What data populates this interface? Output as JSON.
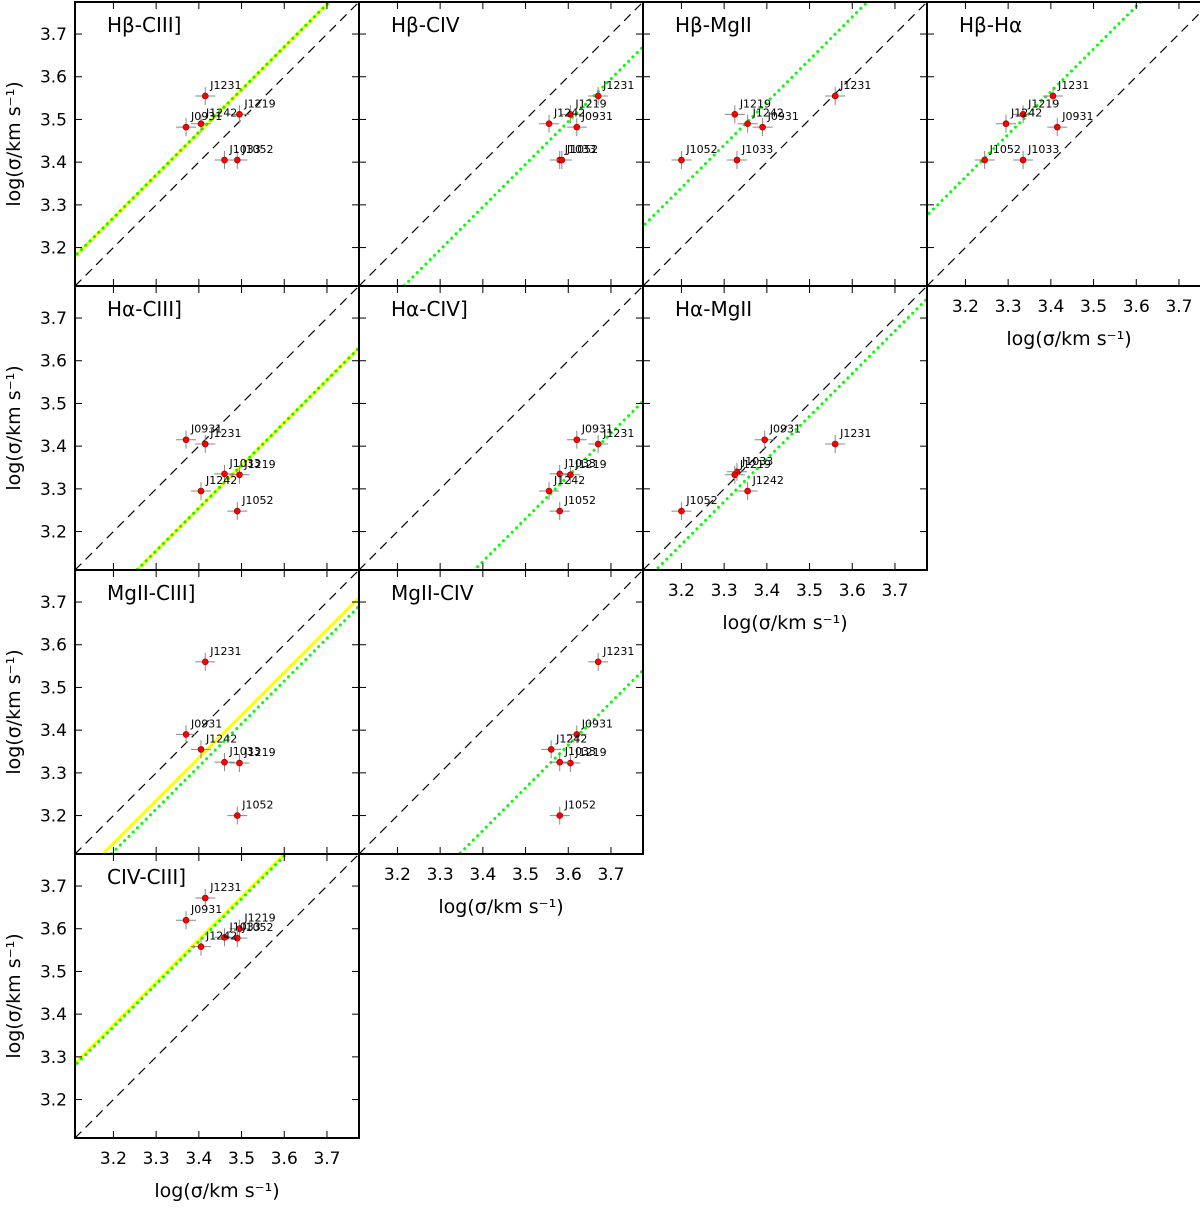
{
  "axis": {
    "xlabel": "log(σ/km s⁻¹)",
    "ylabel": "log(σ/km s⁻¹)",
    "range": [
      3.11,
      3.775
    ],
    "ticks": [
      3.2,
      3.3,
      3.4,
      3.5,
      3.6,
      3.7
    ],
    "tick_labels": [
      "3.2",
      "3.3",
      "3.4",
      "3.5",
      "3.6",
      "3.7"
    ]
  },
  "style": {
    "point_color": "#ff0000",
    "point_edge": "#8b0000",
    "fit_yellow": "#ffff00",
    "fit_green": "#00ff00",
    "error_color": "#888888"
  },
  "chart_data": [
    {
      "type": "scatter",
      "title": "Hβ-CIII]",
      "row": 0,
      "col": 0,
      "xlabel": "",
      "ylabel": "log(σ/km s⁻¹)",
      "fit_green": {
        "slope": 1,
        "intercept": 0.07
      },
      "fit_yellow": {
        "slope": 1,
        "intercept": 0.07
      },
      "points": [
        {
          "name": "J1231",
          "x": 3.415,
          "y": 3.555
        },
        {
          "name": "J1219",
          "x": 3.495,
          "y": 3.512
        },
        {
          "name": "J1242",
          "x": 3.405,
          "y": 3.49
        },
        {
          "name": "J0931",
          "x": 3.37,
          "y": 3.482
        },
        {
          "name": "J1052",
          "x": 3.49,
          "y": 3.405
        },
        {
          "name": "J1033",
          "x": 3.46,
          "y": 3.405
        }
      ]
    },
    {
      "type": "scatter",
      "title": "Hβ-CIV",
      "row": 0,
      "col": 1,
      "xlabel": "",
      "ylabel": "",
      "fit_green": {
        "slope": 1,
        "intercept": -0.105
      },
      "fit_yellow": null,
      "points": [
        {
          "name": "J1231",
          "x": 3.67,
          "y": 3.555
        },
        {
          "name": "J1219",
          "x": 3.605,
          "y": 3.512
        },
        {
          "name": "J1242",
          "x": 3.555,
          "y": 3.49
        },
        {
          "name": "J0931",
          "x": 3.62,
          "y": 3.482
        },
        {
          "name": "J1033",
          "x": 3.58,
          "y": 3.405
        },
        {
          "name": "J1052",
          "x": 3.585,
          "y": 3.405
        }
      ]
    },
    {
      "type": "scatter",
      "title": "Hβ-MgII",
      "row": 0,
      "col": 2,
      "xlabel": "",
      "ylabel": "",
      "fit_green": {
        "slope": 1,
        "intercept": 0.14
      },
      "fit_yellow": null,
      "points": [
        {
          "name": "J1231",
          "x": 3.56,
          "y": 3.555
        },
        {
          "name": "J1219",
          "x": 3.325,
          "y": 3.512
        },
        {
          "name": "J0931",
          "x": 3.39,
          "y": 3.482
        },
        {
          "name": "J1242",
          "x": 3.355,
          "y": 3.49
        },
        {
          "name": "J1052",
          "x": 3.2,
          "y": 3.405
        },
        {
          "name": "J1033",
          "x": 3.33,
          "y": 3.405
        }
      ]
    },
    {
      "type": "scatter",
      "title": "Hβ-Hα",
      "row": 0,
      "col": 3,
      "xlabel": "log(σ/km s⁻¹)",
      "ylabel": "",
      "fit_green": {
        "slope": 1,
        "intercept": 0.165
      },
      "fit_yellow": null,
      "points": [
        {
          "name": "J1231",
          "x": 3.405,
          "y": 3.555
        },
        {
          "name": "J1219",
          "x": 3.335,
          "y": 3.512
        },
        {
          "name": "J1242",
          "x": 3.295,
          "y": 3.49
        },
        {
          "name": "J0931",
          "x": 3.415,
          "y": 3.482
        },
        {
          "name": "J1052",
          "x": 3.245,
          "y": 3.405
        },
        {
          "name": "J1033",
          "x": 3.335,
          "y": 3.405
        }
      ]
    },
    {
      "type": "scatter",
      "title": "Hα-CIII]",
      "row": 1,
      "col": 0,
      "xlabel": "",
      "ylabel": "log(σ/km s⁻¹)",
      "fit_green": {
        "slope": 1,
        "intercept": -0.145
      },
      "fit_yellow": {
        "slope": 1,
        "intercept": -0.145
      },
      "points": [
        {
          "name": "J0931",
          "x": 3.37,
          "y": 3.415
        },
        {
          "name": "J1231",
          "x": 3.415,
          "y": 3.405
        },
        {
          "name": "J1219",
          "x": 3.495,
          "y": 3.333
        },
        {
          "name": "J1033",
          "x": 3.46,
          "y": 3.335
        },
        {
          "name": "J1242",
          "x": 3.405,
          "y": 3.295
        },
        {
          "name": "J1052",
          "x": 3.49,
          "y": 3.248
        }
      ]
    },
    {
      "type": "scatter",
      "title": "Hα-CIV]",
      "row": 1,
      "col": 1,
      "xlabel": "",
      "ylabel": "",
      "fit_green": {
        "slope": 1,
        "intercept": -0.27
      },
      "fit_yellow": null,
      "points": [
        {
          "name": "J0931",
          "x": 3.62,
          "y": 3.415
        },
        {
          "name": "J1231",
          "x": 3.67,
          "y": 3.405
        },
        {
          "name": "J1033",
          "x": 3.58,
          "y": 3.335
        },
        {
          "name": "J1219",
          "x": 3.605,
          "y": 3.333
        },
        {
          "name": "J1242",
          "x": 3.555,
          "y": 3.295
        },
        {
          "name": "J1052",
          "x": 3.58,
          "y": 3.248
        }
      ]
    },
    {
      "type": "scatter",
      "title": "Hα-MgII",
      "row": 1,
      "col": 2,
      "xlabel": "log(σ/km s⁻¹)",
      "ylabel": "",
      "fit_green": {
        "slope": 1,
        "intercept": -0.03
      },
      "fit_yellow": null,
      "points": [
        {
          "name": "J0931",
          "x": 3.395,
          "y": 3.415
        },
        {
          "name": "J1231",
          "x": 3.56,
          "y": 3.405
        },
        {
          "name": "J1033",
          "x": 3.33,
          "y": 3.34
        },
        {
          "name": "J1219",
          "x": 3.325,
          "y": 3.333
        },
        {
          "name": "J1242",
          "x": 3.355,
          "y": 3.295
        },
        {
          "name": "J1052",
          "x": 3.2,
          "y": 3.248
        }
      ]
    },
    {
      "type": "scatter",
      "title": "MgII-CIII]",
      "row": 2,
      "col": 0,
      "xlabel": "",
      "ylabel": "log(σ/km s⁻¹)",
      "fit_green": {
        "slope": 1,
        "intercept": -0.085
      },
      "fit_yellow": {
        "slope": 1,
        "intercept": -0.065
      },
      "points": [
        {
          "name": "J1231",
          "x": 3.415,
          "y": 3.56
        },
        {
          "name": "J0931",
          "x": 3.37,
          "y": 3.39
        },
        {
          "name": "J1242",
          "x": 3.405,
          "y": 3.355
        },
        {
          "name": "J1033",
          "x": 3.46,
          "y": 3.325
        },
        {
          "name": "J1219",
          "x": 3.495,
          "y": 3.323
        },
        {
          "name": "J1052",
          "x": 3.49,
          "y": 3.2
        }
      ]
    },
    {
      "type": "scatter",
      "title": "MgII-CIV",
      "row": 2,
      "col": 1,
      "xlabel": "log(σ/km s⁻¹)",
      "ylabel": "",
      "fit_green": {
        "slope": 1,
        "intercept": -0.235
      },
      "fit_yellow": null,
      "points": [
        {
          "name": "J1231",
          "x": 3.67,
          "y": 3.56
        },
        {
          "name": "J0931",
          "x": 3.62,
          "y": 3.39
        },
        {
          "name": "J1242",
          "x": 3.56,
          "y": 3.355
        },
        {
          "name": "J1219",
          "x": 3.605,
          "y": 3.323
        },
        {
          "name": "J1033",
          "x": 3.58,
          "y": 3.325
        },
        {
          "name": "J1052",
          "x": 3.58,
          "y": 3.2
        }
      ]
    },
    {
      "type": "scatter",
      "title": "CIV-CIII]",
      "row": 3,
      "col": 0,
      "xlabel": "log(σ/km s⁻¹)",
      "ylabel": "log(σ/km s⁻¹)",
      "fit_green": {
        "slope": 1,
        "intercept": 0.17
      },
      "fit_yellow": {
        "slope": 1,
        "intercept": 0.175
      },
      "points": [
        {
          "name": "J1231",
          "x": 3.415,
          "y": 3.672
        },
        {
          "name": "J0931",
          "x": 3.37,
          "y": 3.62
        },
        {
          "name": "J1219",
          "x": 3.495,
          "y": 3.6
        },
        {
          "name": "J1033",
          "x": 3.46,
          "y": 3.58
        },
        {
          "name": "J1052",
          "x": 3.49,
          "y": 3.578
        },
        {
          "name": "J1242",
          "x": 3.405,
          "y": 3.558
        }
      ]
    }
  ]
}
